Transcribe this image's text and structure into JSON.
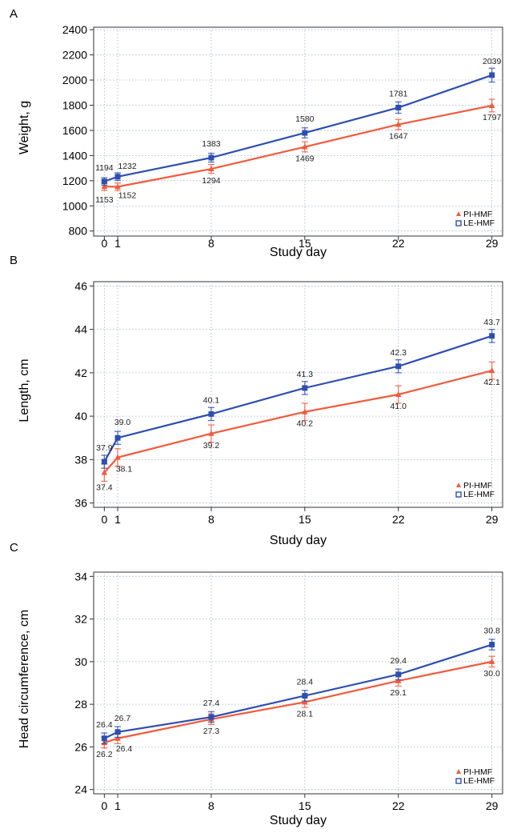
{
  "colors": {
    "pi": "#f15a3c",
    "le": "#2e4fb0",
    "grid": "#9fb0cc",
    "axis": "#333333"
  },
  "chart_data": [
    {
      "panel_label": "A",
      "type": "line",
      "xlabel": "Study day",
      "ylabel": "Weight, g",
      "x": [
        0,
        1,
        8,
        15,
        22,
        29
      ],
      "x_ticks": [
        0,
        1,
        8,
        15,
        22,
        29
      ],
      "xlim": [
        -0.8,
        29.8
      ],
      "ylim": [
        760,
        2420
      ],
      "y_ticks": [
        800,
        1000,
        1200,
        1400,
        1600,
        1800,
        2000,
        2200,
        2400
      ],
      "grid": true,
      "legend_position": "bottom-right",
      "series": [
        {
          "name": "PI-HMF",
          "marker": "triangle",
          "values": [
            1153,
            1152,
            1294,
            1469,
            1647,
            1797
          ],
          "error": [
            30,
            30,
            35,
            40,
            40,
            50
          ],
          "labels": [
            "1153",
            "1152",
            "1294",
            "1469",
            "1647",
            "1797"
          ]
        },
        {
          "name": "LE-HMF",
          "marker": "square",
          "values": [
            1194,
            1232,
            1383,
            1580,
            1781,
            2039
          ],
          "error": [
            30,
            30,
            35,
            40,
            45,
            55
          ],
          "labels": [
            "1194",
            "1232",
            "1383",
            "1580",
            "1781",
            "2039"
          ]
        }
      ]
    },
    {
      "panel_label": "B",
      "type": "line",
      "xlabel": "Study day",
      "ylabel": "Length, cm",
      "x": [
        0,
        1,
        8,
        15,
        22,
        29
      ],
      "x_ticks": [
        0,
        1,
        8,
        15,
        22,
        29
      ],
      "xlim": [
        -0.8,
        29.8
      ],
      "ylim": [
        35.8,
        46.2
      ],
      "y_ticks": [
        36,
        38,
        40,
        42,
        44,
        46
      ],
      "grid": true,
      "legend_position": "bottom-right",
      "series": [
        {
          "name": "PI-HMF",
          "marker": "triangle",
          "values": [
            37.4,
            38.1,
            39.2,
            40.2,
            41.0,
            42.1
          ],
          "error": [
            0.4,
            0.4,
            0.4,
            0.4,
            0.4,
            0.4
          ],
          "labels": [
            "37.4",
            "38.1",
            "39.2",
            "40.2",
            "41.0",
            "42.1"
          ]
        },
        {
          "name": "LE-HMF",
          "marker": "square",
          "values": [
            37.9,
            39.0,
            40.1,
            41.3,
            42.3,
            43.7
          ],
          "error": [
            0.3,
            0.3,
            0.3,
            0.3,
            0.3,
            0.3
          ],
          "labels": [
            "37.9",
            "39.0",
            "40.1",
            "41.3",
            "42.3",
            "43.7"
          ]
        }
      ]
    },
    {
      "panel_label": "C",
      "type": "line",
      "xlabel": "Study day",
      "ylabel": "Head circumference, cm",
      "x": [
        0,
        1,
        8,
        15,
        22,
        29
      ],
      "x_ticks": [
        0,
        1,
        8,
        15,
        22,
        29
      ],
      "xlim": [
        -0.8,
        29.8
      ],
      "ylim": [
        23.8,
        34.2
      ],
      "y_ticks": [
        24,
        26,
        28,
        30,
        32,
        34
      ],
      "grid": true,
      "legend_position": "bottom-right",
      "series": [
        {
          "name": "PI-HMF",
          "marker": "triangle",
          "values": [
            26.2,
            26.4,
            27.3,
            28.1,
            29.1,
            30.0
          ],
          "error": [
            0.25,
            0.25,
            0.25,
            0.25,
            0.25,
            0.25
          ],
          "labels": [
            "26.2",
            "26.4",
            "27.3",
            "28.1",
            "29.1",
            "30.0"
          ]
        },
        {
          "name": "LE-HMF",
          "marker": "square",
          "values": [
            26.4,
            26.7,
            27.4,
            28.4,
            29.4,
            30.8
          ],
          "error": [
            0.25,
            0.25,
            0.25,
            0.25,
            0.25,
            0.25
          ],
          "labels": [
            "26.4",
            "26.7",
            "27.4",
            "28.4",
            "29.4",
            "30.8"
          ]
        }
      ]
    }
  ]
}
